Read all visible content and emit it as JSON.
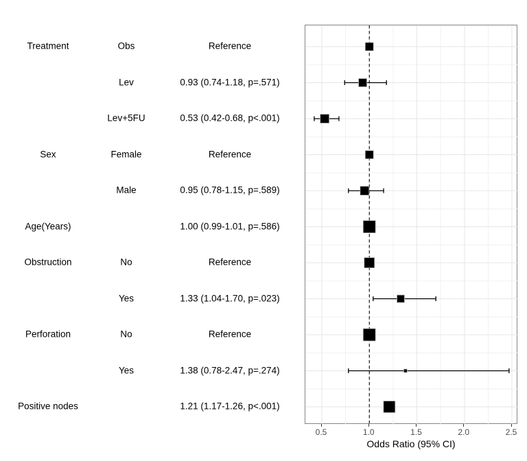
{
  "chart_data": {
    "type": "forest",
    "title": "",
    "xlabel": "Odds Ratio (95% CI)",
    "x_ticks": [
      0.5,
      1.0,
      1.5,
      2.0,
      2.5
    ],
    "x_tick_labels": [
      "0.5",
      "1.0",
      "1.5",
      "2.0",
      "2.5"
    ],
    "xlim": [
      0.33,
      2.57
    ],
    "reference_line": 1.0,
    "grid": true,
    "legend": "none",
    "columns": [
      "variable",
      "level",
      "estimate"
    ],
    "rows": [
      {
        "variable": "Treatment",
        "level": "Obs",
        "estimate": "Reference",
        "or": 1.0,
        "ci_low": null,
        "ci_high": null,
        "marker_size": 12
      },
      {
        "variable": "",
        "level": "Lev",
        "estimate": "0.93 (0.74-1.18, p=.571)",
        "or": 0.93,
        "ci_low": 0.74,
        "ci_high": 1.18,
        "marker_size": 12
      },
      {
        "variable": "",
        "level": "Lev+5FU",
        "estimate": "0.53 (0.42-0.68, p<.001)",
        "or": 0.53,
        "ci_low": 0.42,
        "ci_high": 0.68,
        "marker_size": 13
      },
      {
        "variable": "Sex",
        "level": "Female",
        "estimate": "Reference",
        "or": 1.0,
        "ci_low": null,
        "ci_high": null,
        "marker_size": 12
      },
      {
        "variable": "",
        "level": "Male",
        "estimate": "0.95 (0.78-1.15, p=.589)",
        "or": 0.95,
        "ci_low": 0.78,
        "ci_high": 1.15,
        "marker_size": 13
      },
      {
        "variable": "Age(Years)",
        "level": "",
        "estimate": "1.00 (0.99-1.01, p=.586)",
        "or": 1.0,
        "ci_low": 0.99,
        "ci_high": 1.01,
        "marker_size": 18
      },
      {
        "variable": "Obstruction",
        "level": "No",
        "estimate": "Reference",
        "or": 1.0,
        "ci_low": null,
        "ci_high": null,
        "marker_size": 15
      },
      {
        "variable": "",
        "level": "Yes",
        "estimate": "1.33 (1.04-1.70, p=.023)",
        "or": 1.33,
        "ci_low": 1.04,
        "ci_high": 1.7,
        "marker_size": 11
      },
      {
        "variable": "Perforation",
        "level": "No",
        "estimate": "Reference",
        "or": 1.0,
        "ci_low": null,
        "ci_high": null,
        "marker_size": 18
      },
      {
        "variable": "",
        "level": "Yes",
        "estimate": "1.38 (0.78-2.47, p=.274)",
        "or": 1.38,
        "ci_low": 0.78,
        "ci_high": 2.47,
        "marker_size": 5
      },
      {
        "variable": "Positive nodes",
        "level": "",
        "estimate": "1.21 (1.17-1.26, p<.001)",
        "or": 1.21,
        "ci_low": 1.17,
        "ci_high": 1.26,
        "marker_size": 17
      }
    ],
    "colors": {
      "marker": "#000000",
      "marker_edge": "#bdbdbd",
      "ci_line": "#000000",
      "reference_line": "#1a1a1a",
      "grid_major": "#e6e6e6",
      "grid_minor": "#f2f2f2",
      "panel_border": "#858585",
      "tick": "#333333",
      "tick_label": "#4d4d4d",
      "background": "#ffffff"
    }
  }
}
